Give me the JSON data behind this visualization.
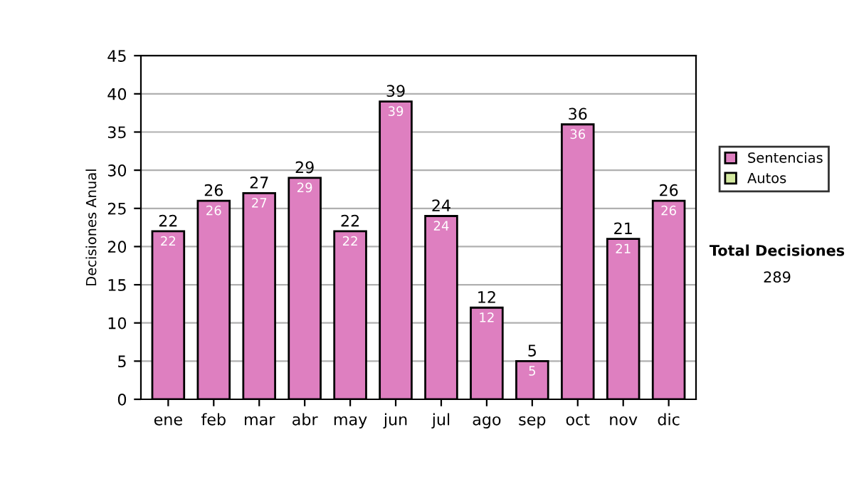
{
  "chart_data": {
    "type": "bar",
    "stacked": true,
    "ylabel": "Decisiones Anual",
    "categories": [
      "ene",
      "feb",
      "mar",
      "abr",
      "may",
      "jun",
      "jul",
      "ago",
      "sep",
      "oct",
      "nov",
      "dic"
    ],
    "series": [
      {
        "name": "Sentencias",
        "color": "#de7fc0",
        "values": [
          22,
          26,
          27,
          29,
          22,
          39,
          24,
          12,
          5,
          36,
          21,
          26
        ],
        "value_labels": [
          "22",
          "26",
          "27",
          "29",
          "22",
          "39",
          "24",
          "12",
          "5",
          "36",
          "21",
          "26"
        ]
      },
      {
        "name": "Autos",
        "color": "#d4eaa0",
        "values": [
          0,
          0,
          0,
          0,
          0,
          0,
          0,
          0,
          0,
          0,
          0,
          0
        ]
      }
    ],
    "totals": [
      "22",
      "26",
      "27",
      "29",
      "22",
      "39",
      "24",
      "12",
      "5",
      "36",
      "21",
      "26"
    ],
    "ylim": [
      0,
      45
    ],
    "yticks": [
      0,
      5,
      10,
      15,
      20,
      25,
      30,
      35,
      40,
      45
    ],
    "grid": "y",
    "legend": "right",
    "annotations": [
      "Total Decisiones",
      "289"
    ]
  }
}
